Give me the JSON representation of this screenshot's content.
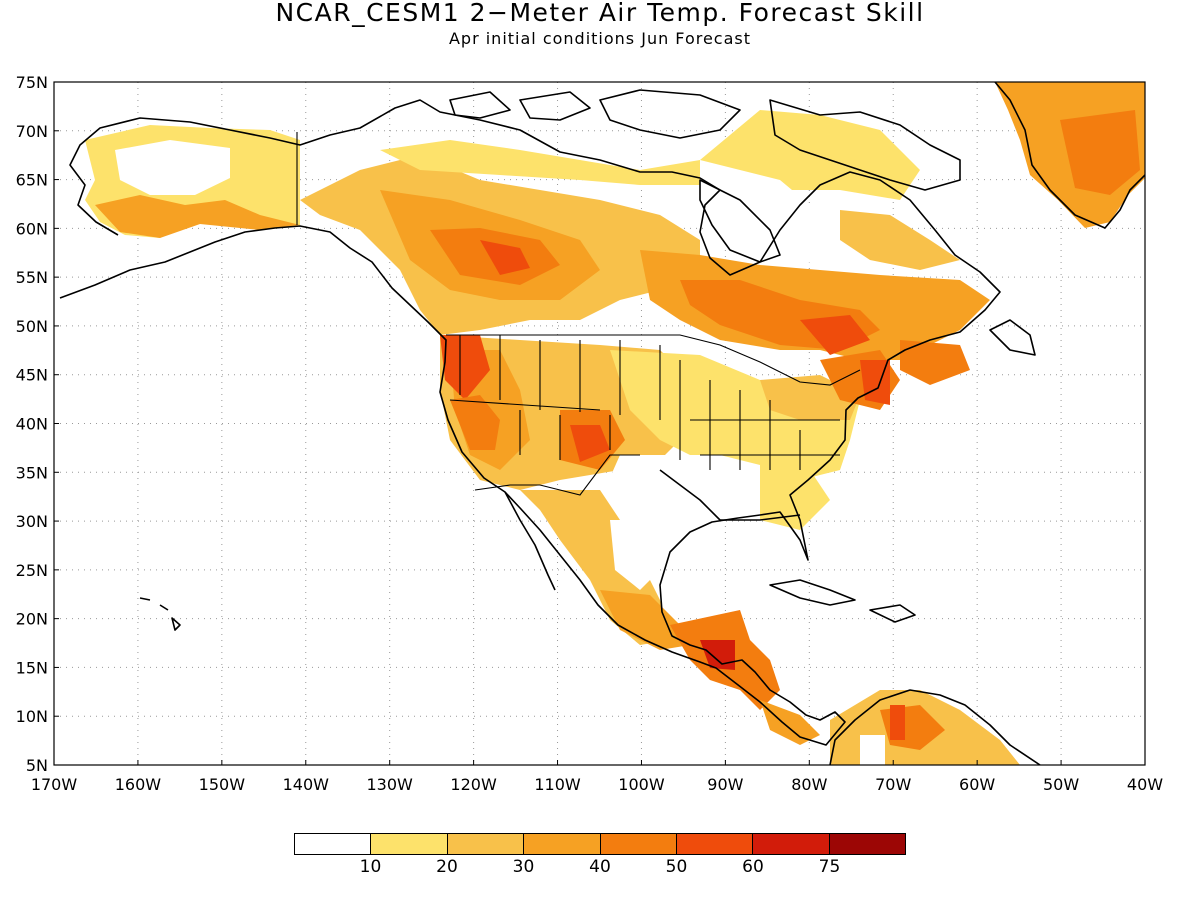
{
  "figure": {
    "title": "NCAR_CESM1 2−Meter Air Temp. Forecast Skill",
    "subtitle": "Apr initial conditions  Jun Forecast"
  },
  "map_data": {
    "projection": "equirectangular",
    "lon_range": [
      -170,
      -40
    ],
    "lat_range": [
      5,
      75
    ],
    "lat_ticks": [
      "5N",
      "10N",
      "15N",
      "20N",
      "25N",
      "30N",
      "35N",
      "40N",
      "45N",
      "50N",
      "55N",
      "60N",
      "65N",
      "70N",
      "75N"
    ],
    "lon_ticks": [
      "170W",
      "160W",
      "150W",
      "140W",
      "130W",
      "120W",
      "110W",
      "100W",
      "90W",
      "80W",
      "70W",
      "60W",
      "50W",
      "40W"
    ],
    "grid": "dotted",
    "legend": {
      "placement": "bottom-center",
      "colors": [
        "#ffffff",
        "#fde26b",
        "#f8c14a",
        "#f6a123",
        "#f37d0f",
        "#ef4c0c",
        "#d21c0a",
        "#9c0605"
      ],
      "labels": [
        "10",
        "20",
        "30",
        "40",
        "50",
        "60",
        "75"
      ]
    }
  }
}
